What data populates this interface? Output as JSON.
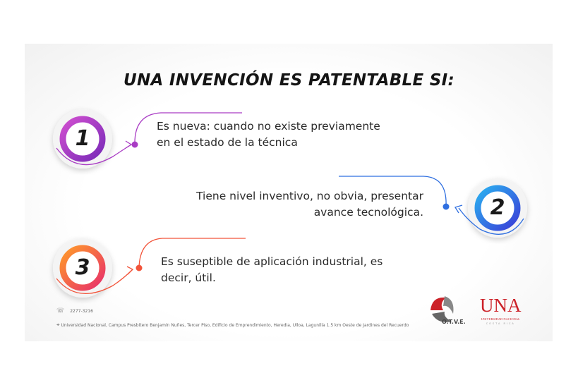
{
  "title": "UNA INVENCIÓN ES PATENTABLE SI:",
  "items": [
    {
      "number": "1",
      "line1": "Es nueva: cuando no existe previamente",
      "line2": "en el estado de la técnica",
      "color": "#a93cc4"
    },
    {
      "number": "2",
      "line1": "Tiene nivel inventivo, no obvia, presentar",
      "line2": "avance tecnológica.",
      "color": "#2f6fe0"
    },
    {
      "number": "3",
      "line1": "Es suseptible de aplicación industrial, es",
      "line2": "decir, útil.",
      "color": "#f2543a"
    }
  ],
  "footer": {
    "phone": "2277-3216",
    "address": "Universidad Nacional, Campus Presbítero Benjamín Nuñes, Tercer Piso, Edificio de Emprendimiento, Heredia, Ulloa, Lagunilla 1.5 km Oeste de Jardines del Recuerdo",
    "phone_icon": "phone-icon",
    "address_icon": "location-pin-icon"
  },
  "logos": {
    "otve": "O.T.V.E.",
    "una": "UNA",
    "una_sub": "UNIVERSIDAD NACIONAL",
    "una_sub2": "COSTA RICA"
  }
}
